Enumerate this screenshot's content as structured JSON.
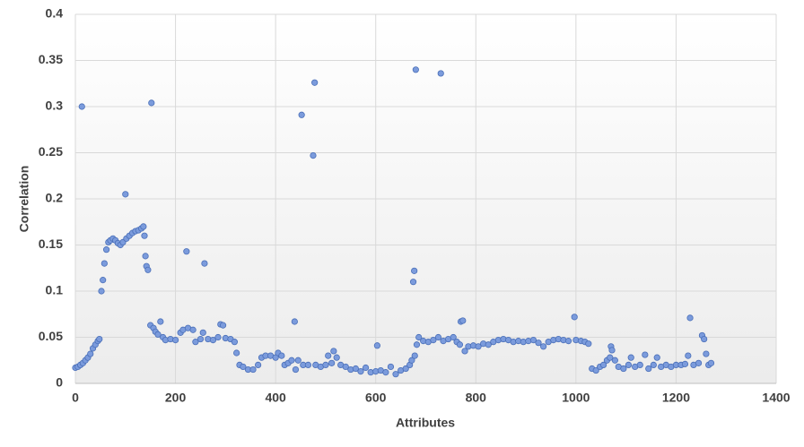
{
  "chart_data": {
    "type": "scatter",
    "xlabel": "Attributes",
    "ylabel": "Correlation",
    "x": [
      0,
      5,
      10,
      13,
      15,
      20,
      25,
      30,
      35,
      40,
      45,
      48,
      52,
      55,
      58,
      62,
      66,
      70,
      75,
      80,
      85,
      90,
      95,
      100,
      102,
      108,
      114,
      120,
      126,
      132,
      136,
      138,
      140,
      142,
      145,
      150,
      152,
      156,
      160,
      165,
      170,
      175,
      180,
      190,
      200,
      210,
      215,
      222,
      225,
      235,
      240,
      250,
      255,
      258,
      265,
      275,
      285,
      290,
      295,
      300,
      310,
      318,
      322,
      328,
      335,
      345,
      355,
      365,
      372,
      380,
      390,
      400,
      405,
      412,
      418,
      425,
      432,
      438,
      440,
      445,
      452,
      455,
      465,
      475,
      478,
      480,
      490,
      500,
      505,
      512,
      516,
      522,
      530,
      540,
      550,
      560,
      570,
      580,
      590,
      600,
      603,
      610,
      620,
      630,
      640,
      650,
      660,
      668,
      672,
      675,
      677,
      678,
      680,
      682,
      686,
      695,
      705,
      715,
      725,
      730,
      735,
      745,
      755,
      762,
      768,
      770,
      774,
      778,
      785,
      795,
      805,
      815,
      825,
      835,
      845,
      855,
      865,
      875,
      885,
      895,
      905,
      915,
      925,
      935,
      945,
      955,
      965,
      975,
      985,
      997,
      1000,
      1010,
      1018,
      1025,
      1032,
      1040,
      1048,
      1055,
      1062,
      1068,
      1070,
      1072,
      1078,
      1085,
      1095,
      1105,
      1110,
      1118,
      1128,
      1138,
      1145,
      1155,
      1162,
      1170,
      1180,
      1190,
      1200,
      1210,
      1218,
      1224,
      1228,
      1235,
      1245,
      1252,
      1256,
      1260,
      1265,
      1270
    ],
    "values": [
      0.017,
      0.018,
      0.02,
      0.3,
      0.022,
      0.025,
      0.028,
      0.032,
      0.038,
      0.042,
      0.046,
      0.048,
      0.1,
      0.112,
      0.13,
      0.145,
      0.153,
      0.155,
      0.157,
      0.155,
      0.152,
      0.15,
      0.153,
      0.205,
      0.157,
      0.16,
      0.163,
      0.165,
      0.166,
      0.168,
      0.17,
      0.16,
      0.138,
      0.127,
      0.123,
      0.063,
      0.304,
      0.06,
      0.056,
      0.053,
      0.067,
      0.05,
      0.047,
      0.048,
      0.047,
      0.055,
      0.058,
      0.143,
      0.06,
      0.058,
      0.045,
      0.048,
      0.055,
      0.13,
      0.048,
      0.047,
      0.05,
      0.064,
      0.063,
      0.049,
      0.048,
      0.045,
      0.033,
      0.02,
      0.018,
      0.015,
      0.015,
      0.02,
      0.028,
      0.03,
      0.03,
      0.028,
      0.033,
      0.03,
      0.02,
      0.022,
      0.025,
      0.067,
      0.015,
      0.025,
      0.291,
      0.02,
      0.02,
      0.247,
      0.326,
      0.02,
      0.018,
      0.02,
      0.03,
      0.022,
      0.035,
      0.028,
      0.02,
      0.018,
      0.015,
      0.016,
      0.013,
      0.017,
      0.012,
      0.013,
      0.041,
      0.014,
      0.012,
      0.018,
      0.01,
      0.014,
      0.016,
      0.02,
      0.025,
      0.11,
      0.122,
      0.03,
      0.34,
      0.042,
      0.05,
      0.046,
      0.045,
      0.047,
      0.05,
      0.336,
      0.046,
      0.048,
      0.05,
      0.045,
      0.042,
      0.067,
      0.068,
      0.035,
      0.04,
      0.041,
      0.04,
      0.043,
      0.042,
      0.045,
      0.047,
      0.048,
      0.047,
      0.045,
      0.046,
      0.045,
      0.046,
      0.047,
      0.044,
      0.04,
      0.045,
      0.047,
      0.048,
      0.047,
      0.046,
      0.072,
      0.047,
      0.046,
      0.045,
      0.043,
      0.016,
      0.014,
      0.018,
      0.02,
      0.025,
      0.028,
      0.04,
      0.036,
      0.025,
      0.018,
      0.016,
      0.02,
      0.028,
      0.018,
      0.02,
      0.031,
      0.016,
      0.02,
      0.028,
      0.018,
      0.02,
      0.018,
      0.02,
      0.02,
      0.021,
      0.03,
      0.071,
      0.02,
      0.022,
      0.052,
      0.048,
      0.032,
      0.02,
      0.022
    ],
    "color": "#7b9bdc",
    "xlim": [
      0,
      1400
    ],
    "xticks": [
      0,
      200,
      400,
      600,
      800,
      1000,
      1200,
      1400
    ],
    "ylim": [
      0,
      0.4
    ],
    "yticks": [
      0,
      0.05,
      0.1,
      0.15,
      0.2,
      0.25,
      0.3,
      0.35,
      0.4
    ],
    "grid": true
  }
}
